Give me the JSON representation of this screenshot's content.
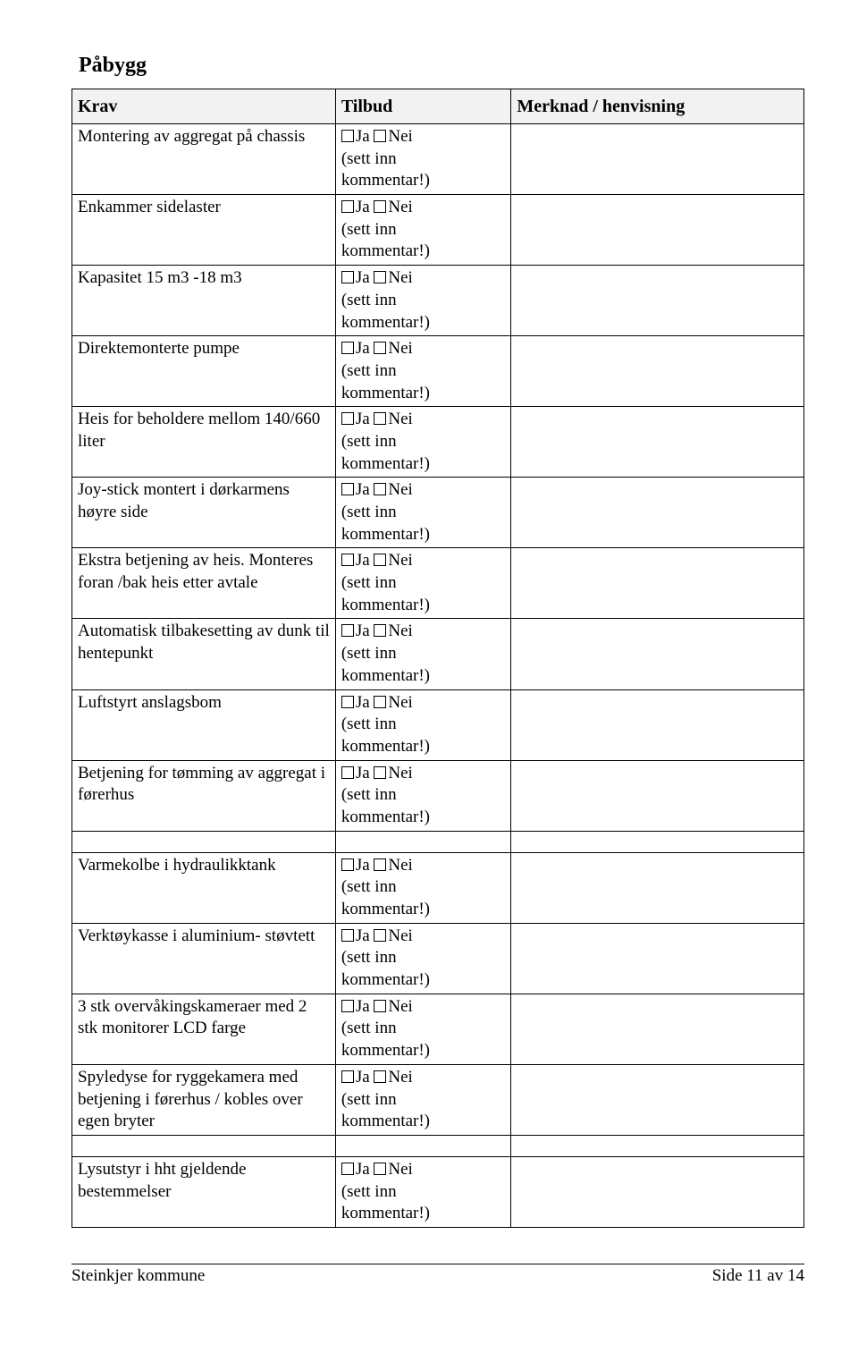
{
  "heading": "Påbygg",
  "columns": {
    "c1": "Krav",
    "c2": "Tilbud",
    "c3": "Merknad / henvisning"
  },
  "tilbud_option": {
    "ja": "Ja",
    "nei": "Nei",
    "sett_inn": "(sett inn",
    "kommentar": "kommentar!)"
  },
  "rows": [
    {
      "type": "item",
      "krav": "Montering av aggregat på chassis"
    },
    {
      "type": "item",
      "krav": "Enkammer sidelaster"
    },
    {
      "type": "item",
      "krav": "Kapasitet 15 m3 -18 m3"
    },
    {
      "type": "item",
      "krav": "Direktemonterte pumpe"
    },
    {
      "type": "item",
      "krav": "Heis for beholdere mellom 140/660 liter"
    },
    {
      "type": "item",
      "krav": "Joy-stick montert i dørkarmens høyre side"
    },
    {
      "type": "item",
      "krav": "Ekstra betjening av heis. Monteres foran /bak heis etter avtale"
    },
    {
      "type": "item",
      "krav": "Automatisk tilbakesetting av dunk til hentepunkt"
    },
    {
      "type": "item",
      "krav": "Luftstyrt anslagsbom"
    },
    {
      "type": "item",
      "krav": "Betjening for tømming av aggregat i førerhus"
    },
    {
      "type": "spacer"
    },
    {
      "type": "item",
      "krav": "Varmekolbe i hydraulikktank"
    },
    {
      "type": "item",
      "krav": "Verktøykasse i aluminium- støvtett"
    },
    {
      "type": "item",
      "krav": "3 stk overvåkingskameraer med 2 stk monitorer LCD farge"
    },
    {
      "type": "item",
      "krav": "Spyledyse for ryggekamera med betjening i førerhus / kobles over egen bryter"
    },
    {
      "type": "spacer"
    },
    {
      "type": "item",
      "krav": "Lysutstyr i hht gjeldende bestemmelser"
    }
  ],
  "footer": {
    "left": "Steinkjer kommune",
    "right": "Side 11 av 14"
  }
}
